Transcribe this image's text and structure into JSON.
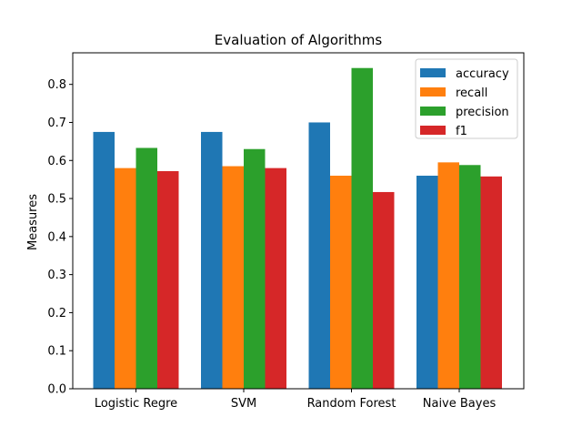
{
  "chart_data": {
    "type": "bar",
    "title": "Evaluation of Algorithms",
    "xlabel": "",
    "ylabel": "Measures",
    "categories": [
      "Logistic Regre",
      "SVM",
      "Random Forest",
      "Naive Bayes"
    ],
    "series": [
      {
        "name": "accuracy",
        "color": "#1f77b4",
        "values": [
          0.675,
          0.675,
          0.7,
          0.56
        ]
      },
      {
        "name": "recall",
        "color": "#ff7f0e",
        "values": [
          0.58,
          0.585,
          0.56,
          0.595
        ]
      },
      {
        "name": "precision",
        "color": "#2ca02c",
        "values": [
          0.633,
          0.63,
          0.843,
          0.588
        ]
      },
      {
        "name": "f1",
        "color": "#d62728",
        "values": [
          0.572,
          0.58,
          0.517,
          0.558
        ]
      }
    ],
    "ylim": [
      0,
      0.883
    ],
    "yticks": [
      "0.0",
      "0.1",
      "0.2",
      "0.3",
      "0.4",
      "0.5",
      "0.6",
      "0.7",
      "0.8"
    ],
    "grid": false,
    "legend_position": "top-right"
  }
}
